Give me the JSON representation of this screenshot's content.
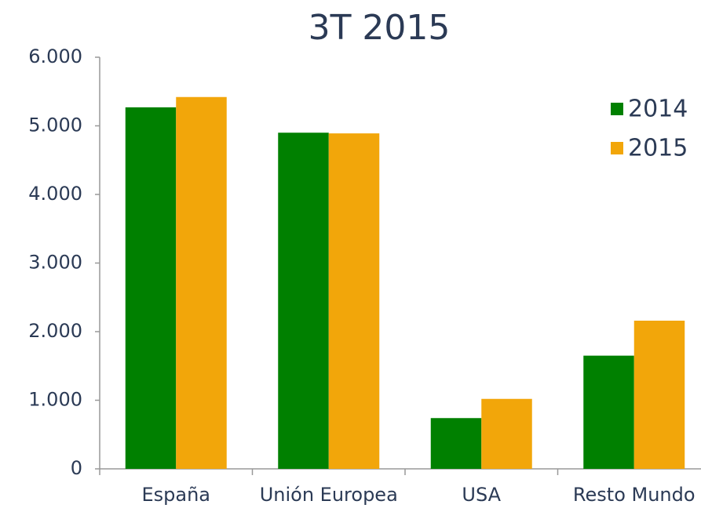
{
  "chart_data": {
    "type": "bar",
    "title": "3T 2015",
    "categories": [
      "España",
      "Unión Europea",
      "USA",
      "Resto Mundo"
    ],
    "series": [
      {
        "name": "2014",
        "color": "#008000",
        "values": [
          5270,
          4900,
          740,
          1650
        ]
      },
      {
        "name": "2015",
        "color": "#f2a60a",
        "values": [
          5420,
          4890,
          1020,
          2160
        ]
      }
    ],
    "ylim": [
      0,
      6000
    ],
    "yticks": [
      0,
      {
        "value": 1000,
        "label": "1.000"
      },
      {
        "value": 2000,
        "label": "2.000"
      },
      {
        "value": 3000,
        "label": "3.000"
      },
      {
        "value": 4000,
        "label": "4.000"
      },
      {
        "value": 5000,
        "label": "5.000"
      },
      {
        "value": 6000,
        "label": "6.000"
      }
    ],
    "grid": false,
    "legend": "top-right"
  }
}
